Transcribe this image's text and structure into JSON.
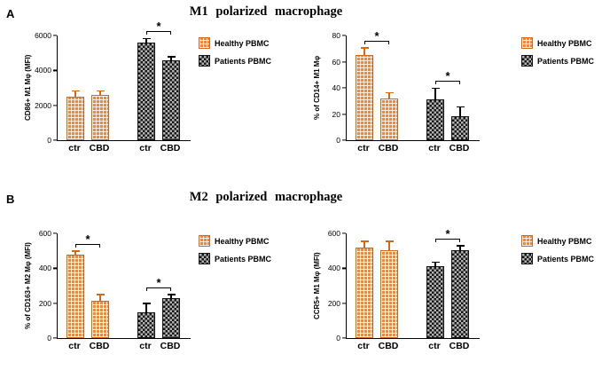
{
  "panels": [
    {
      "label": "A",
      "title": "M1 polarized  macrophage"
    },
    {
      "label": "B",
      "title": "M2 polarized  macrophage"
    }
  ],
  "colors": {
    "healthy": "#F0873C",
    "patients": "#2b2b2b"
  },
  "chart_data": [
    {
      "type": "bar",
      "panel": "A",
      "ylabel": "CD86+ M1 Mφ (MFI)",
      "ylim": [
        0,
        6000
      ],
      "yticks": [
        0,
        2000,
        4000,
        6000
      ],
      "bars": [
        {
          "label": "ctr",
          "group": "healthy",
          "series": "Healthy PBMC",
          "value": 2500,
          "error": 300
        },
        {
          "label": "CBD",
          "group": "healthy",
          "series": "Healthy PBMC",
          "value": 2600,
          "error": 200
        },
        {
          "label": "ctr",
          "group": "patients",
          "series": "Patients PBMC",
          "value": 5600,
          "error": 200
        },
        {
          "label": "CBD",
          "group": "patients",
          "series": "Patients PBMC",
          "value": 4600,
          "error": 150
        }
      ],
      "significance": [
        {
          "between": [
            2,
            3
          ],
          "label": "*"
        }
      ],
      "legend": [
        {
          "label": "Healthy PBMC",
          "key": "healthy"
        },
        {
          "label": "Patients PBMC",
          "key": "patients"
        }
      ]
    },
    {
      "type": "bar",
      "panel": "A",
      "ylabel": "% of CD14+ M1 Mφ",
      "ylim": [
        0,
        80
      ],
      "yticks": [
        0,
        20,
        40,
        60,
        80
      ],
      "bars": [
        {
          "label": "ctr",
          "group": "healthy",
          "series": "Healthy PBMC",
          "value": 65,
          "error": 5
        },
        {
          "label": "CBD",
          "group": "healthy",
          "series": "Healthy PBMC",
          "value": 32,
          "error": 4
        },
        {
          "label": "ctr",
          "group": "patients",
          "series": "Patients PBMC",
          "value": 31,
          "error": 8
        },
        {
          "label": "CBD",
          "group": "patients",
          "series": "Patients PBMC",
          "value": 18,
          "error": 7
        }
      ],
      "significance": [
        {
          "between": [
            0,
            1
          ],
          "label": "*"
        },
        {
          "between": [
            2,
            3
          ],
          "label": "*"
        }
      ],
      "legend": [
        {
          "label": "Healthy PBMC",
          "key": "healthy"
        },
        {
          "label": "Patients PBMC",
          "key": "patients"
        }
      ]
    },
    {
      "type": "bar",
      "panel": "B",
      "ylabel": "% of CD163+ M2 Mφ (MFI)",
      "ylim": [
        0,
        600
      ],
      "yticks": [
        0,
        200,
        400,
        600
      ],
      "bars": [
        {
          "label": "ctr",
          "group": "healthy",
          "series": "Healthy PBMC",
          "value": 480,
          "error": 15
        },
        {
          "label": "CBD",
          "group": "healthy",
          "series": "Healthy PBMC",
          "value": 215,
          "error": 30
        },
        {
          "label": "ctr",
          "group": "patients",
          "series": "Patients PBMC",
          "value": 150,
          "error": 45
        },
        {
          "label": "CBD",
          "group": "patients",
          "series": "Patients PBMC",
          "value": 230,
          "error": 15
        }
      ],
      "significance": [
        {
          "between": [
            0,
            1
          ],
          "label": "*"
        },
        {
          "between": [
            2,
            3
          ],
          "label": "*"
        }
      ],
      "legend": [
        {
          "label": "Healthy PBMC",
          "key": "healthy"
        },
        {
          "label": "Patients PBMC",
          "key": "patients"
        }
      ]
    },
    {
      "type": "bar",
      "panel": "B",
      "ylabel": "CCR5+ M1 Mφ (MFI)",
      "ylim": [
        0,
        600
      ],
      "yticks": [
        0,
        200,
        400,
        600
      ],
      "bars": [
        {
          "label": "ctr",
          "group": "healthy",
          "series": "Healthy PBMC",
          "value": 520,
          "error": 30
        },
        {
          "label": "CBD",
          "group": "healthy",
          "series": "Healthy PBMC",
          "value": 505,
          "error": 45
        },
        {
          "label": "ctr",
          "group": "patients",
          "series": "Patients PBMC",
          "value": 410,
          "error": 20
        },
        {
          "label": "CBD",
          "group": "patients",
          "series": "Patients PBMC",
          "value": 505,
          "error": 20
        }
      ],
      "significance": [
        {
          "between": [
            2,
            3
          ],
          "label": "*"
        }
      ],
      "legend": [
        {
          "label": "Healthy PBMC",
          "key": "healthy"
        },
        {
          "label": "Patients PBMC",
          "key": "patients"
        }
      ]
    }
  ]
}
